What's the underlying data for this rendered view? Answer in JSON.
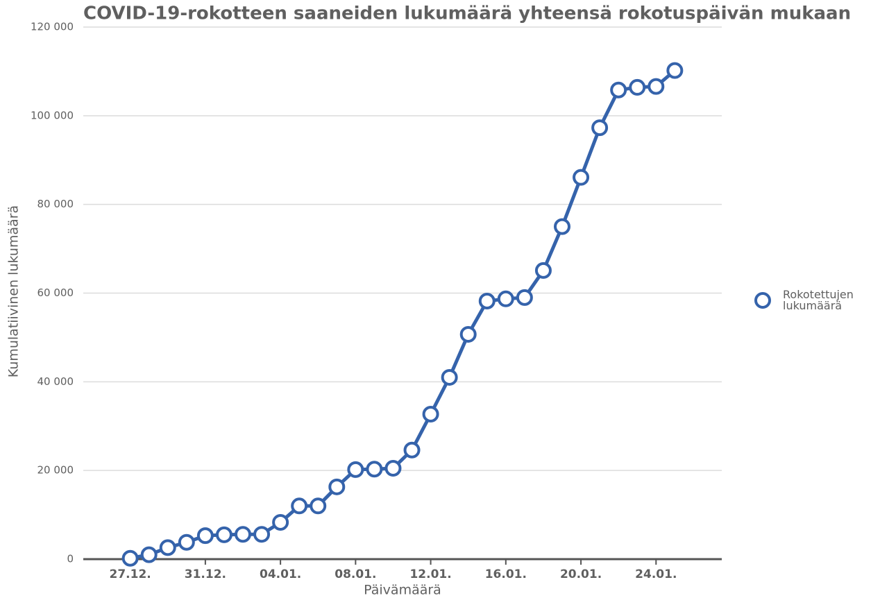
{
  "chart_data": {
    "type": "line",
    "title": "COVID-19-rokotteen saaneiden lukumäärä yhteensä rokotuspäivän mukaan",
    "x_label": "Päivämäärä",
    "y_label": "Kumulatiivinen lukumäärä",
    "categories": [
      "27.12.",
      null,
      null,
      null,
      "31.12.",
      null,
      null,
      null,
      "04.01.",
      null,
      null,
      null,
      "08.01.",
      null,
      null,
      null,
      "12.01.",
      null,
      null,
      null,
      "16.01.",
      null,
      null,
      null,
      "20.01.",
      null,
      null,
      null,
      "24.01.",
      null
    ],
    "series": [
      {
        "name": "Rokotettujen lukumäärä",
        "color": "#3563ab",
        "values": [
          200,
          1000,
          2600,
          3800,
          5300,
          5500,
          5600,
          5600,
          8300,
          12000,
          12000,
          16300,
          20200,
          20300,
          20500,
          24600,
          32700,
          41000,
          50700,
          58200,
          58700,
          59000,
          65100,
          75000,
          86100,
          97300,
          105800,
          106400,
          106600,
          110200
        ]
      }
    ],
    "ylim": [
      0,
      120000
    ],
    "yticks": [
      0,
      {
        "value": 20000,
        "label": "20 000"
      },
      {
        "value": 40000,
        "label": "40 000"
      },
      {
        "value": 60000,
        "label": "60 000"
      },
      {
        "value": 80000,
        "label": "80 000"
      },
      {
        "value": 100000,
        "label": "100 000"
      },
      {
        "value": 120000,
        "label": "120 000"
      }
    ],
    "grid": true,
    "legend": "right"
  }
}
